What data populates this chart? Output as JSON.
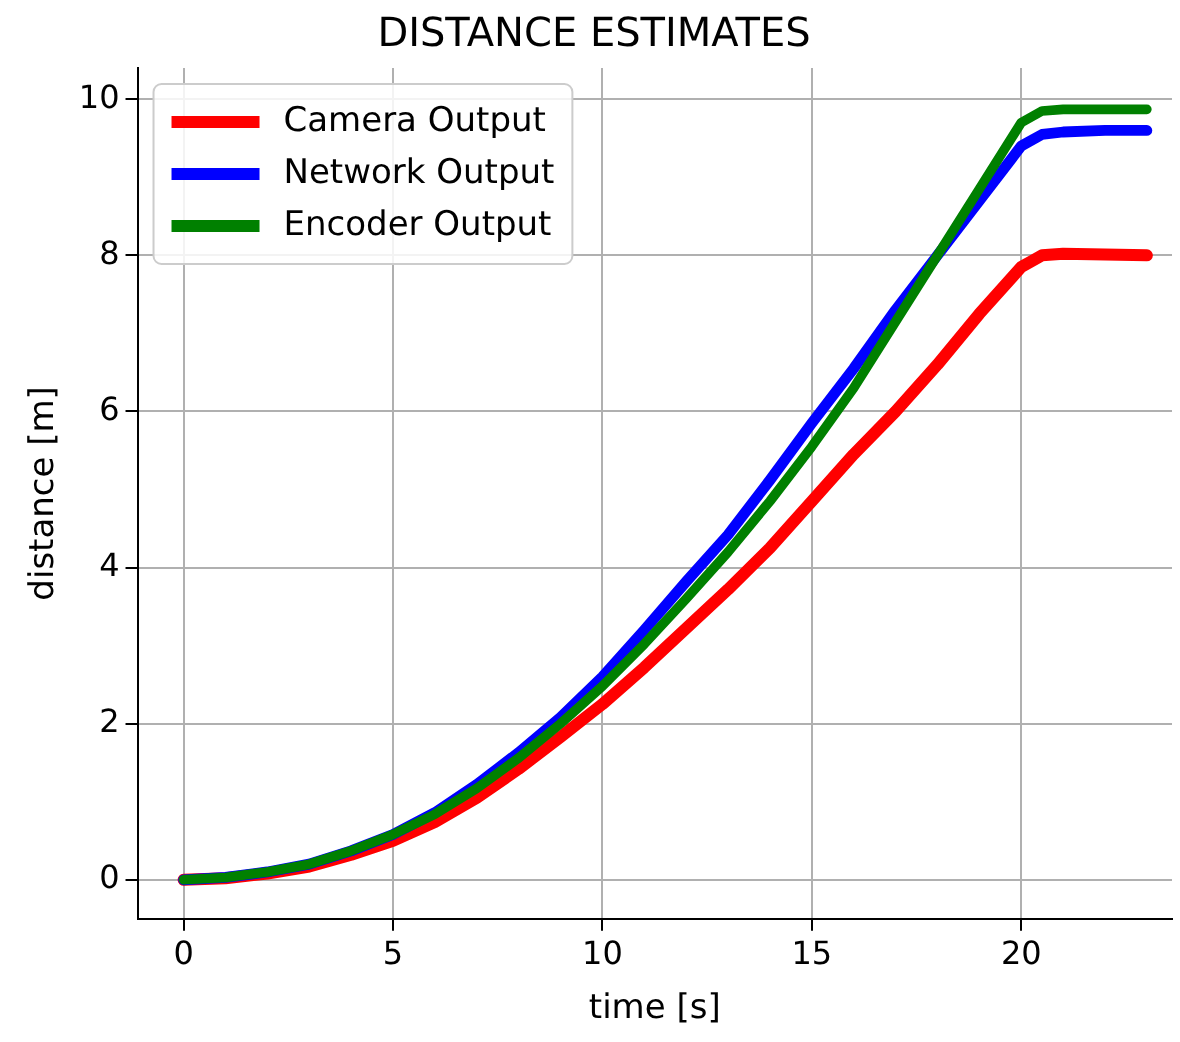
{
  "chart_data": {
    "type": "line",
    "title": "DISTANCE ESTIMATES",
    "xlabel": "time [s]",
    "ylabel": "distance [m]",
    "x": [
      0,
      1,
      2,
      3,
      4,
      5,
      6,
      7,
      8,
      9,
      10,
      11,
      12,
      13,
      14,
      15,
      16,
      17,
      18,
      19,
      20,
      20.5,
      21,
      22,
      23
    ],
    "series": [
      {
        "name": "Camera Output",
        "color": "#ff0000",
        "values": [
          0,
          0.02,
          0.08,
          0.17,
          0.32,
          0.5,
          0.74,
          1.05,
          1.42,
          1.83,
          2.25,
          2.72,
          3.22,
          3.72,
          4.25,
          4.85,
          5.45,
          6.0,
          6.6,
          7.25,
          7.85,
          8.0,
          8.02,
          8.01,
          8.0
        ]
      },
      {
        "name": "Network Output",
        "color": "#0000ff",
        "values": [
          0,
          0.03,
          0.1,
          0.2,
          0.37,
          0.58,
          0.86,
          1.22,
          1.63,
          2.08,
          2.6,
          3.2,
          3.82,
          4.42,
          5.12,
          5.85,
          6.55,
          7.3,
          8.0,
          8.7,
          9.4,
          9.55,
          9.58,
          9.6,
          9.6
        ]
      },
      {
        "name": "Encoder Output",
        "color": "#008000",
        "values": [
          0,
          0.03,
          0.1,
          0.2,
          0.37,
          0.58,
          0.84,
          1.17,
          1.56,
          2.0,
          2.48,
          3.02,
          3.6,
          4.2,
          4.85,
          5.55,
          6.3,
          7.15,
          8.0,
          8.85,
          9.7,
          9.85,
          9.87,
          9.87,
          9.87
        ]
      }
    ],
    "xlim": [
      -1.1,
      23.6
    ],
    "xticks": [
      0,
      5,
      10,
      15,
      20
    ],
    "ylim": [
      -0.5,
      10.4
    ],
    "yticks": [
      0,
      2,
      4,
      6,
      8,
      10
    ],
    "grid": true,
    "legend": "top left",
    "marker": "none",
    "line_style": "solid"
  }
}
